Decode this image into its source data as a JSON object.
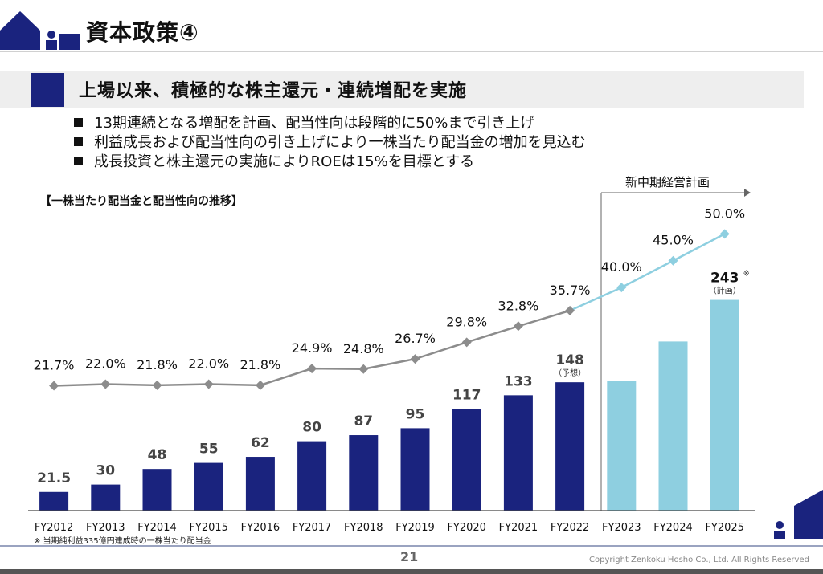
{
  "header": {
    "title": "資本政策④"
  },
  "headline": "上場以来、積極的な株主還元・連続増配を実施",
  "bullets": [
    "13期連続となる増配を計画、配当性向は段階的に50%まで引き上げ",
    "利益成長および配当性向の引き上げにより一株当たり配当金の増加を見込む",
    "成長投資と株主還元の実施によりROEは15%を目標とする"
  ],
  "chart_subtitle": "【一株当たり配当金と配当性向の推移】",
  "plan_label": "新中期経営計画",
  "footnote": "※ 当期純利益335億円達成時の一株当たり配当金",
  "page_number": "21",
  "copyright": "Copyright  Zenkoku Hosho Co., Ltd. All Rights Reserved",
  "colors": {
    "navy": "#1a237e",
    "light_blue": "#8ecfe0",
    "gray_line": "#8c8c8c",
    "plan_line": "#8ecfe0"
  },
  "chart_data": {
    "type": "bar",
    "categories": [
      "FY2012",
      "FY2013",
      "FY2014",
      "FY2015",
      "FY2016",
      "FY2017",
      "FY2018",
      "FY2019",
      "FY2020",
      "FY2021",
      "FY2022",
      "FY2023",
      "FY2024",
      "FY2025"
    ],
    "series": [
      {
        "values": [
          21.5,
          30,
          48,
          55,
          62,
          80,
          87,
          95,
          117,
          133,
          148,
          150,
          195,
          243
        ],
        "labels": [
          "21.5",
          "30",
          "48",
          "55",
          "62",
          "80",
          "87",
          "95",
          "117",
          "133",
          "148",
          "",
          "",
          "243"
        ],
        "notes": [
          "",
          "",
          "",
          "",
          "",
          "",
          "",
          "",
          "",
          "",
          "（予想）",
          "",
          "",
          "（計画）"
        ],
        "marks": [
          "",
          "",
          "",
          "",
          "",
          "",
          "",
          "",
          "",
          "",
          "",
          "",
          "",
          "※"
        ],
        "plan": [
          false,
          false,
          false,
          false,
          false,
          false,
          false,
          false,
          false,
          false,
          false,
          true,
          true,
          true
        ]
      },
      {
        "type": "line",
        "values": [
          21.7,
          22.0,
          21.8,
          22.0,
          21.8,
          24.9,
          24.8,
          26.7,
          29.8,
          32.8,
          35.7,
          40.0,
          45.0,
          50.0
        ],
        "labels": [
          "21.7%",
          "22.0%",
          "21.8%",
          "22.0%",
          "21.8%",
          "24.9%",
          "24.8%",
          "26.7%",
          "29.8%",
          "32.8%",
          "35.7%",
          "40.0%",
          "45.0%",
          "50.0%"
        ],
        "plan": [
          false,
          false,
          false,
          false,
          false,
          false,
          false,
          false,
          false,
          false,
          false,
          true,
          true,
          true
        ]
      }
    ]
  }
}
